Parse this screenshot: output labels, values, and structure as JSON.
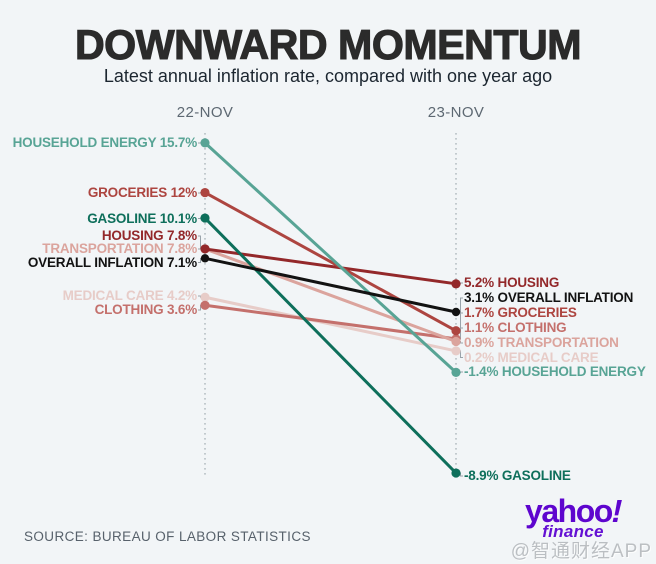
{
  "page": {
    "watermark": "@智通财经APP",
    "logo": {
      "yahoo": "yahoo",
      "bang": "!",
      "finance": "finance"
    }
  },
  "chart_data": {
    "type": "line",
    "subtype": "slope",
    "title": "DOWNWARD MOMENTUM",
    "subtitle": "Latest annual inflation rate, compared with one year ago",
    "source": "SOURCE: BUREAU OF LABOR STATISTICS",
    "columns": [
      "22-NOV",
      "23-NOV"
    ],
    "value_format": "percent",
    "ylim": [
      -9,
      16
    ],
    "series": [
      {
        "name": "HOUSEHOLD ENERGY",
        "values": [
          15.7,
          -1.4
        ],
        "display": [
          "15.7%",
          "-1.4%"
        ],
        "color": "#58a495"
      },
      {
        "name": "GROCERIES",
        "values": [
          12.0,
          1.7
        ],
        "display": [
          "12%",
          "1.7%"
        ],
        "color": "#ad4540"
      },
      {
        "name": "GASOLINE",
        "values": [
          10.1,
          -8.9
        ],
        "display": [
          "10.1%",
          "-8.9%"
        ],
        "color": "#0e6f5b"
      },
      {
        "name": "HOUSING",
        "values": [
          7.8,
          5.2
        ],
        "display": [
          "7.8%",
          "5.2%"
        ],
        "color": "#93282a"
      },
      {
        "name": "TRANSPORTATION",
        "values": [
          7.8,
          0.9
        ],
        "display": [
          "7.8%",
          "0.9%"
        ],
        "color": "#dba49d"
      },
      {
        "name": "OVERALL INFLATION",
        "values": [
          7.1,
          3.1
        ],
        "display": [
          "7.1%",
          "3.1%"
        ],
        "color": "#121212"
      },
      {
        "name": "MEDICAL CARE",
        "values": [
          4.2,
          0.2
        ],
        "display": [
          "4.2%",
          "0.2%"
        ],
        "color": "#e7ccc8"
      },
      {
        "name": "CLOTHING",
        "values": [
          3.6,
          1.1
        ],
        "display": [
          "3.6%",
          "1.1%"
        ],
        "color": "#c4706c"
      }
    ],
    "axis_color": "#a9b2b8",
    "connector_color": "#99a3aa"
  }
}
